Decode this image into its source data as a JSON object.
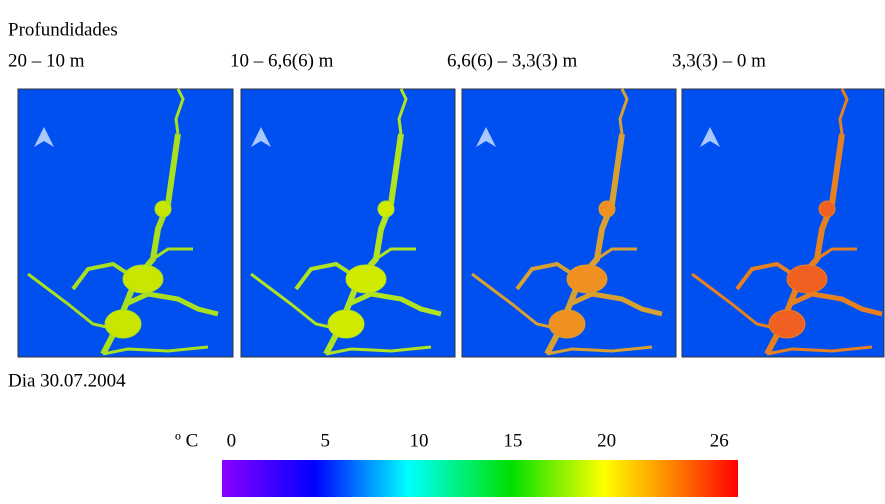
{
  "header": {
    "title": "Profundidades"
  },
  "panels": [
    {
      "label": "20 – 10 m"
    },
    {
      "label": "10 – 6,6(6) m"
    },
    {
      "label": "6,6(6) – 3,3(3) m"
    },
    {
      "label": "3,3(3) – 0 m"
    }
  ],
  "date": "Dia 30.07.2004",
  "colorbar": {
    "unit": "º C",
    "lim": [
      -0.5,
      27
    ],
    "ticks": [
      0,
      5,
      10,
      15,
      20,
      26
    ]
  }
}
